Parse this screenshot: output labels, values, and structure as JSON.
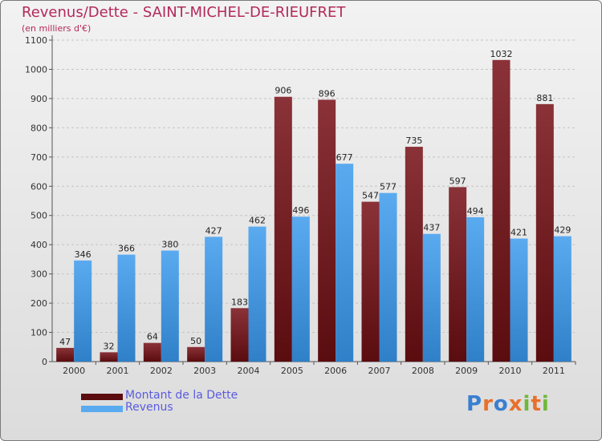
{
  "title": "Revenus/Dette - SAINT-MICHEL-DE-RIEUFRET",
  "subtitle": "(en milliers d'€)",
  "logo": "Proxiti",
  "colors": {
    "debt_top": "#8a3238",
    "debt_bottom": "#5a0c0f",
    "revenue_top": "#5aaaf0",
    "revenue_bottom": "#2f80c8",
    "title": "#b22a5a",
    "legend_text": "#5b5be0"
  },
  "chart_data": {
    "type": "bar",
    "categories": [
      "2000",
      "2001",
      "2002",
      "2003",
      "2004",
      "2005",
      "2006",
      "2007",
      "2008",
      "2009",
      "2010",
      "2011"
    ],
    "series": [
      {
        "name": "Montant de la Dette",
        "values": [
          47,
          32,
          64,
          50,
          183,
          906,
          896,
          547,
          735,
          597,
          1032,
          881
        ]
      },
      {
        "name": "Revenus",
        "values": [
          346,
          366,
          380,
          427,
          462,
          496,
          677,
          577,
          437,
          494,
          421,
          429
        ]
      }
    ],
    "y_ticks": [
      0,
      100,
      200,
      300,
      400,
      500,
      600,
      700,
      800,
      900,
      1000,
      1100
    ],
    "ylim": [
      0,
      1100
    ],
    "grid": true,
    "legend_position": "bottom-left"
  }
}
